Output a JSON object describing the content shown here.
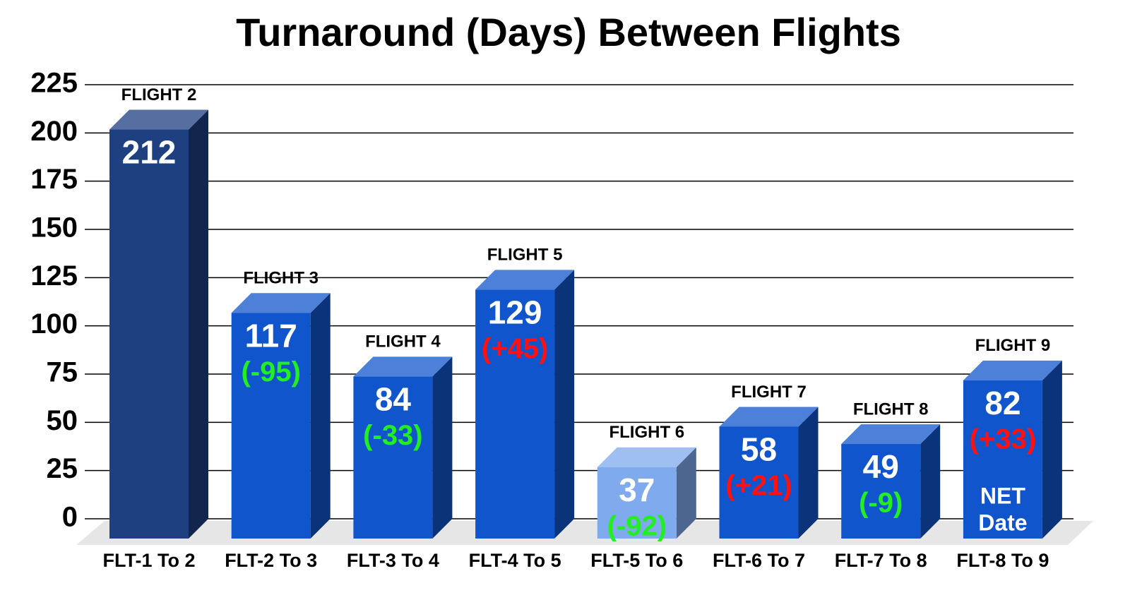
{
  "chart_data": {
    "type": "bar3d",
    "title": "Turnaround (Days) Between Flights",
    "categories": [
      "FLT-1 To 2",
      "FLT-2 To 3",
      "FLT-3 To 4",
      "FLT-4 To 5",
      "FLT-5 To 6",
      "FLT-6 To 7",
      "FLT-7 To 8",
      "FLT-8 To 9"
    ],
    "values": [
      212,
      117,
      84,
      129,
      37,
      58,
      49,
      82
    ],
    "colors": [
      "#1e3f80",
      "#1155cc",
      "#1155cc",
      "#1155cc",
      "#7faaee",
      "#1155cc",
      "#1155cc",
      "#1155cc"
    ],
    "flight_labels": [
      "FLIGHT 2",
      "FLIGHT 3",
      "FLIGHT 4",
      "FLIGHT 5",
      "FLIGHT 6",
      "FLIGHT 7",
      "FLIGHT 8",
      "FLIGHT 9"
    ],
    "change_labels": [
      null,
      "(-95)",
      "(-33)",
      "(+45)",
      "(-92)",
      "(+21)",
      "(-9)",
      "(+33)"
    ],
    "change_colors": [
      null,
      "#22ee22",
      "#22ee22",
      "#ff1111",
      "#22ee22",
      "#ff1111",
      "#22ee22",
      "#ff1111"
    ],
    "annotation": {
      "index": 7,
      "lines": [
        "NET",
        "Date"
      ]
    },
    "ylim": [
      0,
      225
    ],
    "yticks": [
      0,
      25,
      50,
      75,
      100,
      125,
      150,
      175,
      200,
      225
    ],
    "grid": true
  }
}
